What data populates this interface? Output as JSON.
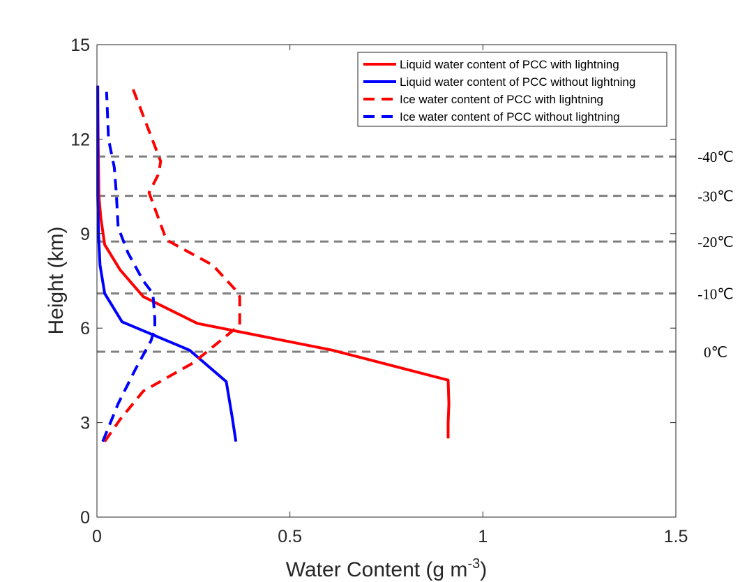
{
  "chart_data": {
    "type": "line",
    "xlabel": "Water Content (g m",
    "xlabel_sup": "-3",
    "xlabel_close": ")",
    "ylabel": "Height (km)",
    "xlim": [
      0,
      1.5
    ],
    "ylim": [
      0,
      15
    ],
    "xticks": [
      0,
      0.5,
      1,
      1.5
    ],
    "xtick_labels": [
      "0",
      "0.5",
      "1",
      "1.5"
    ],
    "yticks": [
      0,
      3,
      6,
      9,
      12,
      15
    ],
    "ytick_labels": [
      "0",
      "3",
      "6",
      "9",
      "12",
      "15"
    ],
    "grid": false,
    "legend_position": "top-right",
    "series": [
      {
        "name": "Liquid water content of PCC with lightning",
        "color": "#ff0000",
        "style": "solid",
        "x": [
          0.91,
          0.91,
          0.912,
          0.91,
          0.61,
          0.26,
          0.12,
          0.06,
          0.02,
          0.01,
          0.005,
          0.003,
          0.002
        ],
        "y": [
          2.5,
          3.0,
          3.6,
          4.35,
          5.3,
          6.15,
          7.0,
          7.85,
          8.65,
          9.5,
          10.2,
          12.0,
          13.7
        ]
      },
      {
        "name": "Liquid water content of PCC without lightning",
        "color": "#0000ff",
        "style": "solid",
        "x": [
          0.36,
          0.35,
          0.335,
          0.24,
          0.065,
          0.02,
          0.008,
          0.004,
          0.002,
          0.002,
          0.002
        ],
        "y": [
          2.4,
          3.2,
          4.3,
          5.3,
          6.2,
          7.1,
          8.0,
          9.0,
          10.2,
          12.0,
          13.7
        ]
      },
      {
        "name": "Ice water content of PCC with lightning",
        "color": "#ff0000",
        "style": "dashed",
        "x": [
          0.02,
          0.06,
          0.12,
          0.25,
          0.33,
          0.37,
          0.37,
          0.36,
          0.3,
          0.18,
          0.135,
          0.16,
          0.165,
          0.09
        ],
        "y": [
          2.4,
          3.1,
          4.0,
          4.9,
          5.7,
          6.1,
          7.0,
          7.2,
          8.0,
          8.8,
          10.3,
          10.9,
          11.3,
          13.7
        ]
      },
      {
        "name": "Ice water content of PCC without lightning",
        "color": "#0000ff",
        "style": "dashed",
        "x": [
          0.015,
          0.055,
          0.1,
          0.14,
          0.15,
          0.15,
          0.145,
          0.12,
          0.08,
          0.055,
          0.05,
          0.045,
          0.03,
          0.025
        ],
        "y": [
          2.4,
          3.6,
          4.7,
          5.6,
          6.0,
          6.3,
          7.1,
          7.5,
          8.4,
          9.2,
          10.3,
          11.1,
          12.0,
          13.5
        ]
      }
    ],
    "reference_lines": [
      {
        "y": 11.45,
        "label": "-40℃"
      },
      {
        "y": 10.2,
        "label": "-30℃"
      },
      {
        "y": 8.75,
        "label": "-20℃"
      },
      {
        "y": 7.1,
        "label": "-10℃"
      },
      {
        "y": 5.25,
        "label": "0℃"
      }
    ]
  }
}
